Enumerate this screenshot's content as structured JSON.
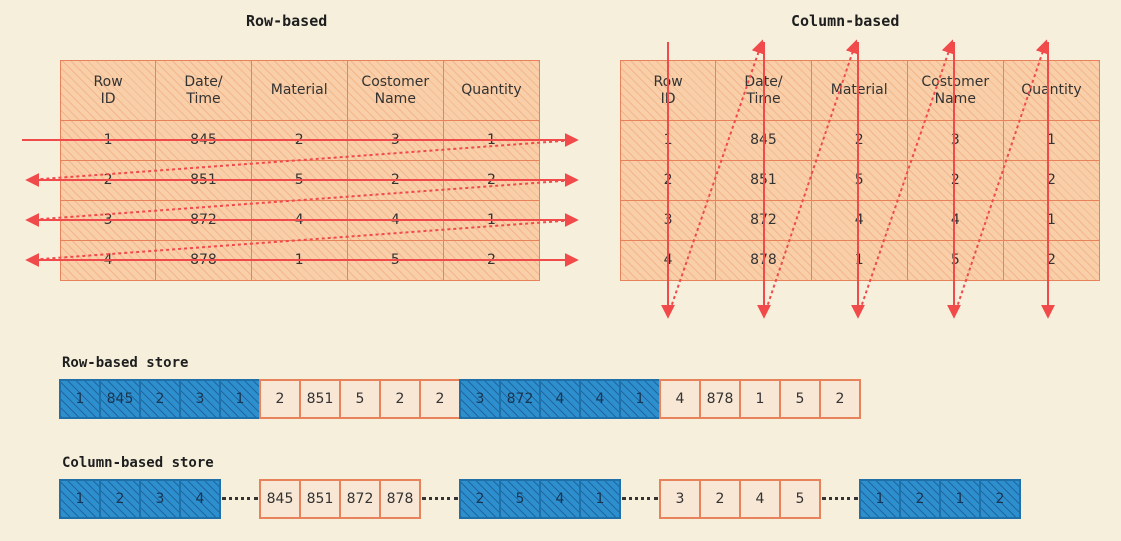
{
  "row_table": {
    "title": "Row-based",
    "headers": [
      [
        "Row",
        "ID"
      ],
      [
        "Date/",
        "Time"
      ],
      [
        "Material"
      ],
      [
        "Costomer",
        "Name"
      ],
      [
        "Quantity"
      ]
    ],
    "rows": [
      [
        "1",
        "845",
        "2",
        "3",
        "1"
      ],
      [
        "2",
        "851",
        "5",
        "2",
        "2"
      ],
      [
        "3",
        "872",
        "4",
        "4",
        "1"
      ],
      [
        "4",
        "878",
        "1",
        "5",
        "2"
      ]
    ]
  },
  "col_table": {
    "title": "Column-based",
    "headers": [
      [
        "Row",
        "ID"
      ],
      [
        "Date/",
        "Time"
      ],
      [
        "Material"
      ],
      [
        "Costomer",
        "Name"
      ],
      [
        "Quantity"
      ]
    ],
    "rows": [
      [
        "1",
        "845",
        "2",
        "3",
        "1"
      ],
      [
        "2",
        "851",
        "5",
        "2",
        "2"
      ],
      [
        "3",
        "872",
        "4",
        "4",
        "1"
      ],
      [
        "4",
        "878",
        "1",
        "5",
        "2"
      ]
    ]
  },
  "row_store": {
    "label": "Row-based store",
    "groups": [
      {
        "color": "blue",
        "values": [
          "1",
          "845",
          "2",
          "3",
          "1"
        ]
      },
      {
        "color": "orange",
        "values": [
          "2",
          "851",
          "5",
          "2",
          "2"
        ]
      },
      {
        "color": "blue",
        "values": [
          "3",
          "872",
          "4",
          "4",
          "1"
        ]
      },
      {
        "color": "orange",
        "values": [
          "4",
          "878",
          "1",
          "5",
          "2"
        ]
      }
    ]
  },
  "col_store": {
    "label": "Column-based store",
    "groups": [
      {
        "color": "blue",
        "values": [
          "1",
          "2",
          "3",
          "4"
        ]
      },
      {
        "color": "orange",
        "values": [
          "845",
          "851",
          "872",
          "878"
        ]
      },
      {
        "color": "blue",
        "values": [
          "2",
          "5",
          "4",
          "1"
        ]
      },
      {
        "color": "orange",
        "values": [
          "3",
          "2",
          "4",
          "5"
        ]
      },
      {
        "color": "blue",
        "values": [
          "1",
          "2",
          "1",
          "2"
        ]
      }
    ]
  },
  "colors": {
    "background": "#f5efdc",
    "orange_fill": "#f8cfa8",
    "orange_stroke": "#e8825a",
    "arrow_red": "#f04a4a",
    "blue_fill": "#2e8fcf"
  }
}
